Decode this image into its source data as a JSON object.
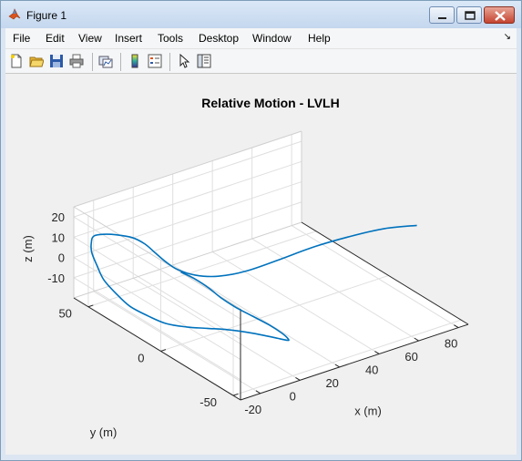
{
  "window": {
    "title": "Figure 1"
  },
  "menu": [
    "File",
    "Edit",
    "View",
    "Insert",
    "Tools",
    "Desktop",
    "Window",
    "Help"
  ],
  "toolbar": [
    "new-figure",
    "open-file",
    "save",
    "print",
    "link-plot",
    "insert-colorbar",
    "insert-legend",
    "edit-plot",
    "property-inspector"
  ],
  "chart_data": {
    "type": "line3d",
    "title": "Relative Motion - LVLH",
    "xlabel": "x (m)",
    "ylabel": "y (m)",
    "zlabel": "z (m)",
    "x_ticks": [
      "-20",
      "0",
      "20",
      "40",
      "60",
      "80"
    ],
    "y_ticks": [
      "-50",
      "0",
      "50"
    ],
    "z_ticks": [
      "-10",
      "0",
      "10",
      "20"
    ],
    "xlim": [
      -30,
      85
    ],
    "ylim": [
      -55,
      60
    ],
    "zlim": [
      -20,
      25
    ],
    "grid": true,
    "line_color": "#0072bd",
    "series": [
      {
        "x": [
          81,
          72,
          62,
          52,
          40,
          28,
          18,
          10,
          4,
          0,
          -3,
          -6,
          -10,
          -16,
          -21,
          -25,
          -27,
          -29,
          -30,
          -31,
          -30,
          -28,
          -24,
          -20,
          -14,
          -8,
          -2,
          4,
          9,
          13,
          16,
          17,
          16,
          13,
          9,
          5,
          2,
          0,
          -3,
          -6
        ],
        "y": [
          -25,
          -15,
          -5,
          5,
          13,
          20,
          26,
          31,
          35,
          38,
          41,
          44,
          47,
          50,
          52,
          53,
          52,
          49,
          44,
          38,
          31,
          24,
          17,
          10,
          4,
          -2,
          -8,
          -13,
          -18,
          -22,
          -24,
          -24,
          -21,
          -16,
          -10,
          -4,
          2,
          8,
          14,
          19
        ],
        "z": [
          17,
          14,
          9,
          3,
          -3,
          -8,
          -10,
          -9,
          -6,
          -2,
          2,
          6,
          9,
          11,
          12,
          12,
          10,
          7,
          3,
          -1,
          -5,
          -9,
          -12,
          -14,
          -15,
          -15,
          -15,
          -16,
          -17,
          -18,
          -19,
          -19,
          -17,
          -14,
          -11,
          -8,
          -5,
          -2,
          1,
          3
        ]
      }
    ]
  }
}
